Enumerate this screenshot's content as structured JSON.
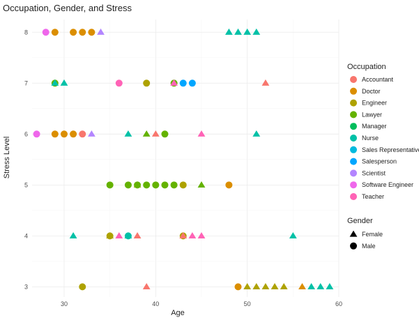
{
  "chart_data": {
    "type": "scatter",
    "title": "Occupation, Gender, and Stress",
    "xlabel": "Age",
    "ylabel": "Stress Level",
    "xlim": [
      26.5,
      60
    ],
    "ylim": [
      2.8,
      8.25
    ],
    "xticks": [
      30,
      40,
      50,
      60
    ],
    "yticks": [
      3,
      4,
      5,
      6,
      7,
      8
    ],
    "grid": true,
    "legend_position": "right",
    "color_legend": {
      "title": "Occupation",
      "items": [
        {
          "name": "Accountant",
          "color": "#F8766D"
        },
        {
          "name": "Doctor",
          "color": "#DB8E00"
        },
        {
          "name": "Engineer",
          "color": "#AEA200"
        },
        {
          "name": "Lawyer",
          "color": "#64B200"
        },
        {
          "name": "Manager",
          "color": "#00BD5C"
        },
        {
          "name": "Nurse",
          "color": "#00C1A7"
        },
        {
          "name": "Sales Representative",
          "color": "#00BADE"
        },
        {
          "name": "Salesperson",
          "color": "#00A6FF"
        },
        {
          "name": "Scientist",
          "color": "#B385FF"
        },
        {
          "name": "Software Engineer",
          "color": "#EF67EB"
        },
        {
          "name": "Teacher",
          "color": "#FF63B6"
        }
      ]
    },
    "shape_legend": {
      "title": "Gender",
      "items": [
        {
          "name": "Female",
          "shape": "triangle"
        },
        {
          "name": "Male",
          "shape": "circle"
        }
      ]
    },
    "points": [
      {
        "age": 28,
        "stress": 8,
        "occupation": "Software Engineer",
        "gender": "Male"
      },
      {
        "age": 29,
        "stress": 8,
        "occupation": "Doctor",
        "gender": "Male"
      },
      {
        "age": 31,
        "stress": 8,
        "occupation": "Doctor",
        "gender": "Male"
      },
      {
        "age": 32,
        "stress": 8,
        "occupation": "Doctor",
        "gender": "Male"
      },
      {
        "age": 33,
        "stress": 8,
        "occupation": "Doctor",
        "gender": "Male"
      },
      {
        "age": 34,
        "stress": 8,
        "occupation": "Scientist",
        "gender": "Female"
      },
      {
        "age": 48,
        "stress": 8,
        "occupation": "Nurse",
        "gender": "Female"
      },
      {
        "age": 49,
        "stress": 8,
        "occupation": "Nurse",
        "gender": "Female"
      },
      {
        "age": 50,
        "stress": 8,
        "occupation": "Nurse",
        "gender": "Female"
      },
      {
        "age": 51,
        "stress": 8,
        "occupation": "Nurse",
        "gender": "Female"
      },
      {
        "age": 29,
        "stress": 7,
        "occupation": "Lawyer",
        "gender": "Male"
      },
      {
        "age": 29,
        "stress": 7,
        "occupation": "Nurse",
        "gender": "Female"
      },
      {
        "age": 30,
        "stress": 7,
        "occupation": "Nurse",
        "gender": "Female"
      },
      {
        "age": 36,
        "stress": 7,
        "occupation": "Teacher",
        "gender": "Male"
      },
      {
        "age": 39,
        "stress": 7,
        "occupation": "Engineer",
        "gender": "Male"
      },
      {
        "age": 42,
        "stress": 7,
        "occupation": "Lawyer",
        "gender": "Male"
      },
      {
        "age": 42,
        "stress": 7,
        "occupation": "Teacher",
        "gender": "Female"
      },
      {
        "age": 43,
        "stress": 7,
        "occupation": "Salesperson",
        "gender": "Male"
      },
      {
        "age": 44,
        "stress": 7,
        "occupation": "Salesperson",
        "gender": "Male"
      },
      {
        "age": 52,
        "stress": 7,
        "occupation": "Accountant",
        "gender": "Female"
      },
      {
        "age": 27,
        "stress": 6,
        "occupation": "Software Engineer",
        "gender": "Male"
      },
      {
        "age": 29,
        "stress": 6,
        "occupation": "Doctor",
        "gender": "Male"
      },
      {
        "age": 30,
        "stress": 6,
        "occupation": "Doctor",
        "gender": "Male"
      },
      {
        "age": 31,
        "stress": 6,
        "occupation": "Doctor",
        "gender": "Male"
      },
      {
        "age": 32,
        "stress": 6,
        "occupation": "Accountant",
        "gender": "Male"
      },
      {
        "age": 33,
        "stress": 6,
        "occupation": "Scientist",
        "gender": "Female"
      },
      {
        "age": 37,
        "stress": 6,
        "occupation": "Nurse",
        "gender": "Female"
      },
      {
        "age": 39,
        "stress": 6,
        "occupation": "Lawyer",
        "gender": "Female"
      },
      {
        "age": 40,
        "stress": 6,
        "occupation": "Accountant",
        "gender": "Female"
      },
      {
        "age": 41,
        "stress": 6,
        "occupation": "Lawyer",
        "gender": "Male"
      },
      {
        "age": 45,
        "stress": 6,
        "occupation": "Teacher",
        "gender": "Female"
      },
      {
        "age": 51,
        "stress": 6,
        "occupation": "Nurse",
        "gender": "Female"
      },
      {
        "age": 35,
        "stress": 5,
        "occupation": "Lawyer",
        "gender": "Male"
      },
      {
        "age": 37,
        "stress": 5,
        "occupation": "Lawyer",
        "gender": "Male"
      },
      {
        "age": 38,
        "stress": 5,
        "occupation": "Engineer",
        "gender": "Female"
      },
      {
        "age": 38,
        "stress": 5,
        "occupation": "Lawyer",
        "gender": "Male"
      },
      {
        "age": 39,
        "stress": 5,
        "occupation": "Lawyer",
        "gender": "Male"
      },
      {
        "age": 40,
        "stress": 5,
        "occupation": "Lawyer",
        "gender": "Male"
      },
      {
        "age": 41,
        "stress": 5,
        "occupation": "Lawyer",
        "gender": "Male"
      },
      {
        "age": 42,
        "stress": 5,
        "occupation": "Lawyer",
        "gender": "Male"
      },
      {
        "age": 43,
        "stress": 5,
        "occupation": "Engineer",
        "gender": "Male"
      },
      {
        "age": 45,
        "stress": 5,
        "occupation": "Lawyer",
        "gender": "Female"
      },
      {
        "age": 48,
        "stress": 5,
        "occupation": "Doctor",
        "gender": "Male"
      },
      {
        "age": 31,
        "stress": 4,
        "occupation": "Nurse",
        "gender": "Female"
      },
      {
        "age": 35,
        "stress": 4,
        "occupation": "Engineer",
        "gender": "Male"
      },
      {
        "age": 35,
        "stress": 4,
        "occupation": "Engineer",
        "gender": "Female"
      },
      {
        "age": 36,
        "stress": 4,
        "occupation": "Teacher",
        "gender": "Female"
      },
      {
        "age": 37,
        "stress": 4,
        "occupation": "Nurse",
        "gender": "Male"
      },
      {
        "age": 37,
        "stress": 4,
        "occupation": "Nurse",
        "gender": "Female"
      },
      {
        "age": 38,
        "stress": 4,
        "occupation": "Accountant",
        "gender": "Female"
      },
      {
        "age": 43,
        "stress": 4,
        "occupation": "Engineer",
        "gender": "Male"
      },
      {
        "age": 43,
        "stress": 4,
        "occupation": "Accountant",
        "gender": "Female"
      },
      {
        "age": 44,
        "stress": 4,
        "occupation": "Teacher",
        "gender": "Female"
      },
      {
        "age": 45,
        "stress": 4,
        "occupation": "Teacher",
        "gender": "Female"
      },
      {
        "age": 55,
        "stress": 4,
        "occupation": "Nurse",
        "gender": "Female"
      },
      {
        "age": 32,
        "stress": 3,
        "occupation": "Engineer",
        "gender": "Male"
      },
      {
        "age": 39,
        "stress": 3,
        "occupation": "Accountant",
        "gender": "Female"
      },
      {
        "age": 49,
        "stress": 3,
        "occupation": "Doctor",
        "gender": "Male"
      },
      {
        "age": 50,
        "stress": 3,
        "occupation": "Engineer",
        "gender": "Female"
      },
      {
        "age": 51,
        "stress": 3,
        "occupation": "Engineer",
        "gender": "Female"
      },
      {
        "age": 52,
        "stress": 3,
        "occupation": "Engineer",
        "gender": "Female"
      },
      {
        "age": 53,
        "stress": 3,
        "occupation": "Engineer",
        "gender": "Female"
      },
      {
        "age": 54,
        "stress": 3,
        "occupation": "Engineer",
        "gender": "Female"
      },
      {
        "age": 56,
        "stress": 3,
        "occupation": "Doctor",
        "gender": "Female"
      },
      {
        "age": 57,
        "stress": 3,
        "occupation": "Nurse",
        "gender": "Female"
      },
      {
        "age": 58,
        "stress": 3,
        "occupation": "Nurse",
        "gender": "Female"
      },
      {
        "age": 59,
        "stress": 3,
        "occupation": "Nurse",
        "gender": "Female"
      }
    ]
  }
}
